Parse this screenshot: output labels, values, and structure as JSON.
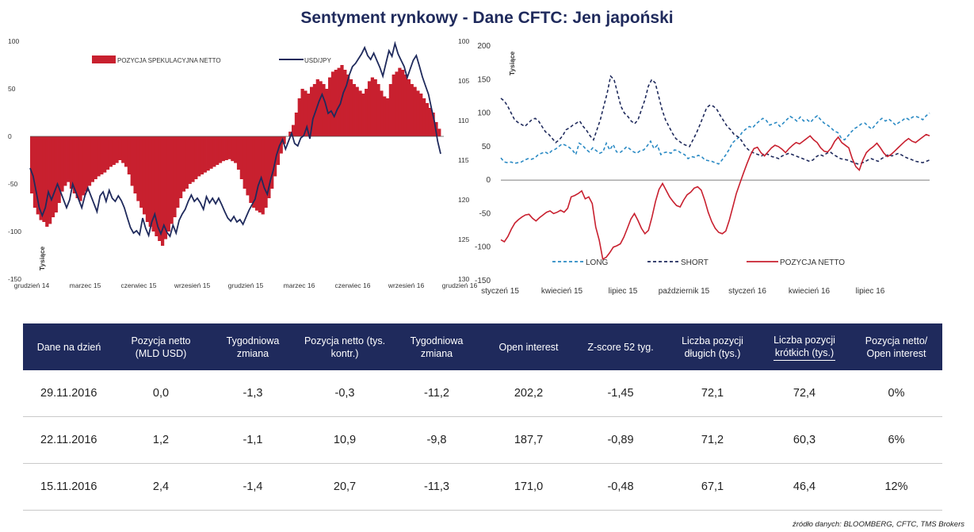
{
  "title": "Sentyment rynkowy - Dane CFTC: Jen japoński",
  "colors": {
    "netto": "#c8202f",
    "usdjpy": "#1f2a5c",
    "long": "#2a8ac4",
    "short": "#1f2a5c",
    "header_bg": "#1f2a5c"
  },
  "chart_data": [
    {
      "type": "bar",
      "secondary_type": "line",
      "title": "",
      "ylabel": "Tysiące",
      "ylim": [
        -150,
        100
      ],
      "y2lim": [
        130,
        100
      ],
      "y2_inverted": true,
      "y_ticks": [
        "100",
        "50",
        "0",
        "-50",
        "-100",
        "-150"
      ],
      "y2_ticks": [
        "100",
        "105",
        "110",
        "115",
        "120",
        "125",
        "130"
      ],
      "x_tick_labels": [
        "grudzień 14",
        "marzec 15",
        "czerwiec 15",
        "wrzesień 15",
        "grudzień 15",
        "marzec 16",
        "czerwiec 16",
        "wrzesień 16",
        "grudzień 16"
      ],
      "legend": [
        "POZYCJA SPEKULACYJNA NETTO",
        "USD/JPY"
      ],
      "legend_position": "top",
      "grid": false,
      "series": [
        {
          "name": "POZYCJA SPEKULACYJNA NETTO",
          "axis": "left",
          "values": [
            -60,
            -75,
            -82,
            -88,
            -90,
            -95,
            -92,
            -85,
            -80,
            -70,
            -58,
            -52,
            -48,
            -55,
            -60,
            -65,
            -68,
            -62,
            -58,
            -52,
            -48,
            -45,
            -42,
            -40,
            -38,
            -35,
            -32,
            -30,
            -28,
            -25,
            -28,
            -32,
            -40,
            -52,
            -60,
            -68,
            -75,
            -82,
            -90,
            -95,
            -100,
            -105,
            -110,
            -115,
            -108,
            -100,
            -92,
            -85,
            -75,
            -65,
            -58,
            -55,
            -50,
            -48,
            -45,
            -42,
            -40,
            -38,
            -36,
            -34,
            -32,
            -30,
            -28,
            -26,
            -25,
            -24,
            -26,
            -28,
            -35,
            -45,
            -55,
            -62,
            -70,
            -75,
            -78,
            -80,
            -82,
            -75,
            -65,
            -55,
            -42,
            -30,
            -18,
            -8,
            0,
            5,
            12,
            25,
            40,
            50,
            48,
            45,
            52,
            55,
            60,
            58,
            55,
            50,
            62,
            68,
            70,
            72,
            75,
            70,
            65,
            60,
            55,
            52,
            48,
            45,
            50,
            58,
            62,
            60,
            55,
            48,
            42,
            40,
            55,
            65,
            68,
            72,
            70,
            65,
            60,
            55,
            52,
            48,
            45,
            40,
            35,
            30,
            25,
            15,
            8
          ],
          "count": 136
        },
        {
          "name": "USD/JPY",
          "axis": "right",
          "values": [
            116,
            117,
            119,
            121,
            122,
            121,
            119,
            120,
            119,
            118,
            119,
            120,
            121,
            120,
            118,
            119,
            120,
            121,
            119.5,
            118.5,
            119.5,
            120.5,
            121.5,
            119.5,
            119,
            120.2,
            118.8,
            119.8,
            120.2,
            119.5,
            120.1,
            121,
            122.3,
            123.5,
            124.2,
            123.9,
            124.4,
            122.3,
            123.6,
            124.5,
            122.8,
            121.8,
            123.4,
            124.3,
            123.2,
            124.1,
            124.6,
            123.2,
            124.2,
            122.6,
            121.8,
            121.2,
            120.2,
            119.4,
            120.2,
            119.8,
            120.4,
            121.2,
            119.6,
            120.4,
            119.8,
            120.5,
            119.8,
            120.6,
            121.5,
            122.3,
            122.7,
            122.1,
            122.8,
            122.5,
            123.1,
            122.2,
            121.3,
            120.6,
            119.9,
            118.2,
            117.2,
            118.5,
            119.3,
            117.6,
            116.2,
            114.4,
            113.2,
            112.4,
            113.6,
            112.6,
            111.6,
            112.9,
            113.2,
            112.2,
            111.9,
            110.8,
            112.3,
            109.8,
            108.7,
            107.6,
            106.7,
            107.7,
            109.1,
            108.8,
            109.5,
            108.6,
            107.9,
            106.5,
            105.6,
            104.2,
            103.2,
            102.8,
            102.2,
            101.6,
            100.8,
            101.8,
            102.3,
            101.5,
            102.4,
            103.3,
            104.4,
            102.8,
            101.2,
            101.9,
            100.3,
            101.6,
            102.4,
            103.2,
            104.6,
            103.5,
            102.4,
            101.8,
            103.1,
            104.5,
            105.6,
            106.7,
            108.5,
            110.2,
            112.6,
            114.2
          ],
          "count": 136
        }
      ]
    },
    {
      "type": "line",
      "title": "",
      "ylabel": "Tysiące",
      "ylim": [
        -150,
        200
      ],
      "y_ticks": [
        "200",
        "150",
        "100",
        "50",
        "0",
        "-50",
        "-100",
        "-150"
      ],
      "x_tick_labels": [
        "styczeń 15",
        "kwiecień 15",
        "lipiec 15",
        "październik 15",
        "styczeń 16",
        "kwiecień 16",
        "lipiec 16"
      ],
      "legend_position": "bottom",
      "grid": false,
      "series": [
        {
          "name": "LONG",
          "style": "dashed",
          "values": [
            33,
            27,
            26,
            27,
            25,
            26,
            27,
            30,
            32,
            31,
            33,
            38,
            40,
            42,
            39,
            44,
            46,
            50,
            54,
            52,
            49,
            45,
            38,
            55,
            52,
            46,
            42,
            48,
            44,
            40,
            42,
            55,
            45,
            53,
            42,
            41,
            45,
            50,
            46,
            42,
            40,
            44,
            45,
            51,
            58,
            47,
            52,
            38,
            41,
            42,
            40,
            45,
            44,
            40,
            38,
            32,
            35,
            34,
            37,
            35,
            30,
            29,
            28,
            26,
            24,
            30,
            37,
            45,
            55,
            60,
            64,
            72,
            76,
            80,
            78,
            84,
            88,
            92,
            89,
            82,
            84,
            86,
            80,
            85,
            90,
            95,
            92,
            88,
            94,
            88,
            90,
            86,
            92,
            96,
            90,
            85,
            82,
            78,
            73,
            71,
            63,
            60,
            66,
            72,
            77,
            80,
            84,
            85,
            80,
            76,
            82,
            88,
            92,
            88,
            91,
            87,
            82,
            86,
            89,
            93,
            90,
            94,
            95,
            93,
            90,
            96,
            100
          ],
          "count": 126
        },
        {
          "name": "SHORT",
          "style": "dashed",
          "values": [
            122,
            118,
            110,
            100,
            90,
            86,
            83,
            80,
            85,
            90,
            92,
            88,
            80,
            72,
            68,
            62,
            56,
            60,
            66,
            75,
            78,
            82,
            85,
            88,
            80,
            74,
            66,
            60,
            75,
            90,
            110,
            130,
            155,
            150,
            130,
            110,
            100,
            95,
            88,
            84,
            90,
            105,
            120,
            140,
            150,
            145,
            125,
            105,
            90,
            80,
            70,
            62,
            58,
            54,
            52,
            50,
            60,
            70,
            82,
            95,
            108,
            112,
            110,
            105,
            96,
            88,
            80,
            75,
            68,
            65,
            60,
            52,
            46,
            42,
            40,
            38,
            36,
            40,
            38,
            35,
            34,
            32,
            36,
            38,
            40,
            38,
            36,
            34,
            32,
            30,
            28,
            30,
            35,
            38,
            36,
            40,
            42,
            38,
            35,
            32,
            31,
            30,
            28,
            26,
            24,
            25,
            27,
            30,
            32,
            30,
            28,
            32,
            35,
            38,
            36,
            38,
            40,
            37,
            34,
            32,
            30,
            28,
            27,
            26,
            28,
            30
          ],
          "count": 126
        },
        {
          "name": "POZYCJA NETTO",
          "style": "solid",
          "values": [
            -89,
            -92,
            -84,
            -73,
            -64,
            -59,
            -55,
            -52,
            -51,
            -57,
            -61,
            -56,
            -52,
            -48,
            -46,
            -50,
            -48,
            -45,
            -48,
            -42,
            -25,
            -23,
            -20,
            -16,
            -28,
            -25,
            -35,
            -70,
            -90,
            -118,
            -115,
            -108,
            -100,
            -98,
            -95,
            -85,
            -72,
            -58,
            -50,
            -60,
            -72,
            -80,
            -75,
            -55,
            -32,
            -14,
            -5,
            -15,
            -25,
            -32,
            -38,
            -40,
            -30,
            -22,
            -18,
            -12,
            -10,
            -15,
            -30,
            -48,
            -62,
            -72,
            -78,
            -80,
            -76,
            -60,
            -40,
            -20,
            -5,
            10,
            24,
            37,
            47,
            49,
            41,
            36,
            42,
            48,
            52,
            50,
            46,
            41,
            47,
            52,
            56,
            54,
            58,
            62,
            66,
            60,
            56,
            48,
            43,
            42,
            48,
            58,
            64,
            56,
            52,
            48,
            32,
            20,
            15,
            30,
            41,
            46,
            50,
            55,
            48,
            40,
            35,
            38,
            43,
            48,
            53,
            58,
            62,
            58,
            56,
            60,
            64,
            68,
            66
          ],
          "count": 126
        }
      ]
    }
  ],
  "table": {
    "headers": [
      [
        "Dane na dzień"
      ],
      [
        "Pozycja netto",
        "(MLD USD)"
      ],
      [
        "Tygodniowa zmiana"
      ],
      [
        "Pozycja netto (tys.",
        "kontr.)"
      ],
      [
        "Tygodniowa zmiana"
      ],
      [
        "Open interest"
      ],
      [
        "Z-score 52 tyg."
      ],
      [
        "Liczba pozycji",
        "długich (tys.)"
      ],
      [
        "Liczba pozycji",
        "krótkich (tys.)"
      ],
      [
        "Pozycja netto/",
        "Open interest"
      ]
    ],
    "rows": [
      [
        "29.11.2016",
        "0,0",
        "-1,3",
        "-0,3",
        "-11,2",
        "202,2",
        "-1,45",
        "72,1",
        "72,4",
        "0%"
      ],
      [
        "22.11.2016",
        "1,2",
        "-1,1",
        "10,9",
        "-9,8",
        "187,7",
        "-0,89",
        "71,2",
        "60,3",
        "6%"
      ],
      [
        "15.11.2016",
        "2,4",
        "-1,4",
        "20,7",
        "-11,3",
        "171,0",
        "-0,48",
        "67,1",
        "46,4",
        "12%"
      ]
    ]
  },
  "source": "źródło danych: BLOOMBERG, CFTC, TMS Brokers"
}
